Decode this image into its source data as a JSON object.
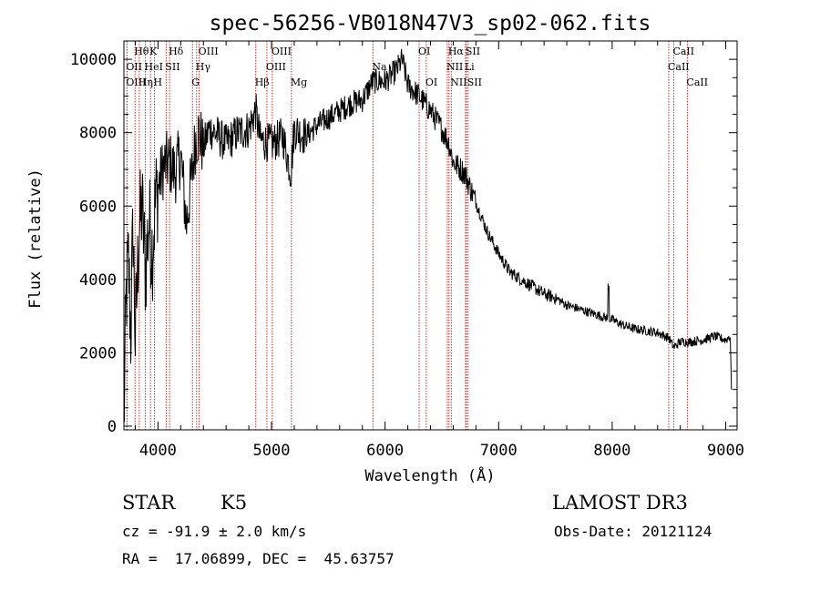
{
  "chart_data": {
    "type": "line",
    "title": "spec-56256-VB018N47V3_sp02-062.fits",
    "xlabel": "Wavelength (Å)",
    "ylabel": "Flux (relative)",
    "xlim": [
      3700,
      9100
    ],
    "ylim": [
      -100,
      10500
    ],
    "xticks": [
      4000,
      5000,
      6000,
      7000,
      8000,
      9000
    ],
    "yticks": [
      0,
      2000,
      4000,
      6000,
      8000,
      10000
    ],
    "series": [
      {
        "name": "spectrum",
        "x": [
          3700,
          3720,
          3740,
          3760,
          3780,
          3800,
          3830,
          3860,
          3890,
          3920,
          3950,
          3980,
          4000,
          4050,
          4100,
          4150,
          4200,
          4250,
          4300,
          4330,
          4360,
          4400,
          4450,
          4500,
          4600,
          4700,
          4800,
          4860,
          4900,
          5000,
          5100,
          5170,
          5200,
          5300,
          5400,
          5500,
          5600,
          5700,
          5800,
          5890,
          6000,
          6100,
          6150,
          6200,
          6300,
          6400,
          6500,
          6563,
          6600,
          6700,
          6800,
          6900,
          7000,
          7100,
          7200,
          7300,
          7400,
          7500,
          7600,
          7700,
          7800,
          7900,
          8000,
          8100,
          8200,
          8300,
          8400,
          8500,
          8542,
          8600,
          8700,
          8800,
          8900,
          9000,
          9040,
          9050
        ],
        "y": [
          0,
          3500,
          4500,
          2500,
          5500,
          2300,
          5200,
          6000,
          4200,
          5600,
          4800,
          6200,
          6500,
          7100,
          7200,
          6900,
          7400,
          5500,
          6900,
          7800,
          8000,
          7600,
          8100,
          8000,
          7700,
          8000,
          8100,
          8600,
          7800,
          7700,
          7900,
          6900,
          8100,
          7900,
          8200,
          8400,
          8600,
          8800,
          8900,
          9400,
          9400,
          9700,
          10000,
          9300,
          9000,
          8600,
          8100,
          7700,
          7200,
          6900,
          6100,
          5300,
          4700,
          4200,
          4000,
          3800,
          3600,
          3500,
          3300,
          3200,
          3100,
          3000,
          2900,
          2750,
          2650,
          2600,
          2550,
          2400,
          2150,
          2300,
          2300,
          2350,
          2450,
          2350,
          2450,
          1000
        ]
      }
    ],
    "spectral_lines": [
      {
        "label": "Hθ",
        "x": 3798,
        "row": 0
      },
      {
        "label": "K",
        "x": 3934,
        "row": 0
      },
      {
        "label": "Hδ",
        "x": 4102,
        "row": 0
      },
      {
        "label": "OII",
        "x": 3727,
        "row": 1
      },
      {
        "label": "HeI",
        "x": 3889,
        "row": 1
      },
      {
        "label": "SII",
        "x": 4072,
        "row": 1
      },
      {
        "label": "OIII",
        "x": 3727,
        "row": 2
      },
      {
        "label": "Hη",
        "x": 3835,
        "row": 2
      },
      {
        "label": "H",
        "x": 3969,
        "row": 2
      },
      {
        "label": "OIII",
        "x": 4363,
        "row": 0
      },
      {
        "label": "Hγ",
        "x": 4340,
        "row": 1
      },
      {
        "label": "G",
        "x": 4304,
        "row": 2
      },
      {
        "label": "OIII",
        "x": 5007,
        "row": 0
      },
      {
        "label": "OIII",
        "x": 4959,
        "row": 1
      },
      {
        "label": "Hβ",
        "x": 4861,
        "row": 2
      },
      {
        "label": "Mg",
        "x": 5175,
        "row": 2
      },
      {
        "label": "Na",
        "x": 5893,
        "row": 1
      },
      {
        "label": "OI",
        "x": 6300,
        "row": 0
      },
      {
        "label": "OI",
        "x": 6363,
        "row": 2
      },
      {
        "label": "Hα",
        "x": 6563,
        "row": 0
      },
      {
        "label": "SII",
        "x": 6716,
        "row": 0
      },
      {
        "label": "NII",
        "x": 6548,
        "row": 1
      },
      {
        "label": "Li",
        "x": 6708,
        "row": 1
      },
      {
        "label": "NII",
        "x": 6583,
        "row": 2
      },
      {
        "label": "SII",
        "x": 6731,
        "row": 2
      },
      {
        "label": "CaII",
        "x": 8542,
        "row": 0
      },
      {
        "label": "CaII",
        "x": 8498,
        "row": 1
      },
      {
        "label": "CaII",
        "x": 8662,
        "row": 2
      }
    ]
  },
  "footer": {
    "object_type": "STAR",
    "subclass": "K5",
    "survey": "LAMOST DR3",
    "cz": "cz = -91.9 ± 2.0 km/s",
    "obs_date": "Obs-Date: 20121124",
    "coords": "RA =  17.06899, DEC =  45.63757"
  }
}
